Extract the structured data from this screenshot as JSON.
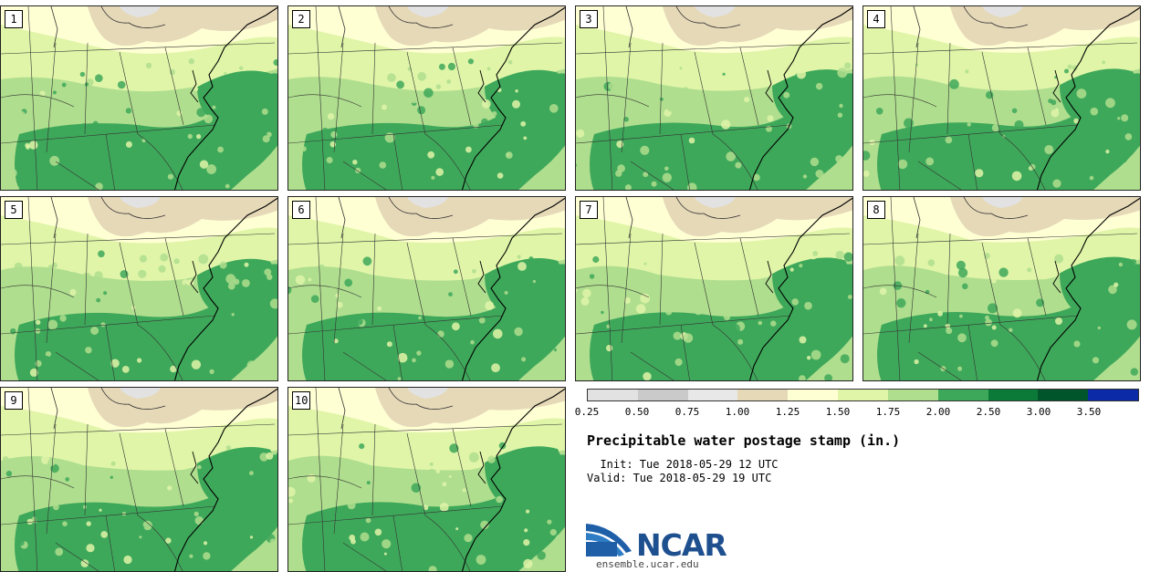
{
  "panels": [
    {
      "label": "1"
    },
    {
      "label": "2"
    },
    {
      "label": "3"
    },
    {
      "label": "4"
    },
    {
      "label": "5"
    },
    {
      "label": "6"
    },
    {
      "label": "7"
    },
    {
      "label": "8"
    },
    {
      "label": "9"
    },
    {
      "label": "10"
    }
  ],
  "colorbar": {
    "colors": [
      "#e2e2e2",
      "#cacaca",
      "#e8e8e8",
      "#e6d9b8",
      "#ffffd4",
      "#e0f5a8",
      "#afde8e",
      "#3ea85a",
      "#0b7a38",
      "#00552a",
      "#0a2aa8"
    ],
    "labels": [
      "0.25",
      "0.50",
      "0.75",
      "1.00",
      "1.25",
      "1.50",
      "1.75",
      "2.00",
      "2.50",
      "3.00",
      "3.50"
    ]
  },
  "title": "Precipitable water postage stamp (in.)",
  "init": "  Init: Tue 2018-05-29 12 UTC",
  "valid": "Valid: Tue 2018-05-29 19 UTC",
  "logo": {
    "name": "NCAR",
    "url": "ensemble.ucar.edu"
  }
}
